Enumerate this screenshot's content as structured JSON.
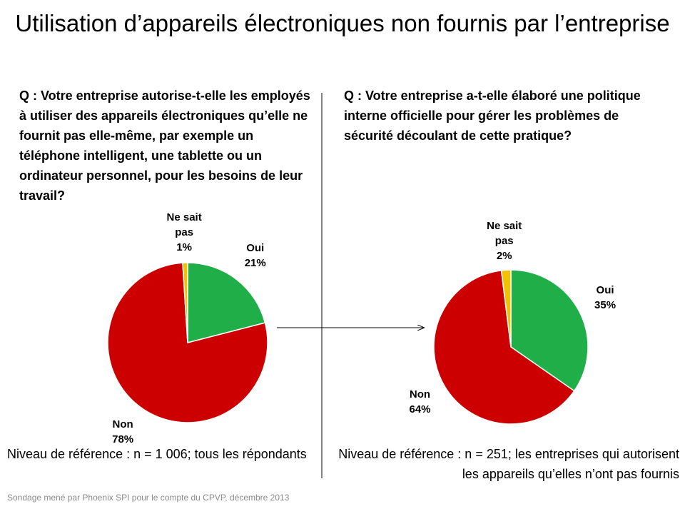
{
  "title": "Utilisation d’appareils électroniques non fournis par l’entreprise",
  "source": "Sondage mené par Phoenix SPI pour le compte du CPVP, décembre 2013",
  "chart_data": [
    {
      "type": "pie",
      "title": "Q : Votre entreprise autorise-t-elle les employés à utiliser des appareils électroniques qu’elle ne fournit pas elle-même, par exemple un téléphone intelligent, une tablette ou un ordinateur personnel, pour les besoins de leur travail?",
      "note": "Niveau de référence : n = 1 006; tous les répondants",
      "categories": [
        "Oui",
        "Non",
        "Ne sait pas"
      ],
      "values": [
        21,
        78,
        1
      ],
      "value_labels": [
        "21%",
        "78%",
        "1%"
      ],
      "colors": [
        "#1fae48",
        "#cc0000",
        "#f2c200"
      ]
    },
    {
      "type": "pie",
      "title": "Q : Votre entreprise a-t-elle élaboré une politique interne officielle pour gérer les problèmes de sécurité découlant de cette pratique?",
      "note": "Niveau de référence : n = 251; les entreprises qui autorisent les appareils qu’elles n’ont pas fournis",
      "categories": [
        "Oui",
        "Non",
        "Ne sait pas"
      ],
      "values": [
        35,
        64,
        2
      ],
      "value_labels": [
        "35%",
        "64%",
        "2%"
      ],
      "colors": [
        "#1fae48",
        "#cc0000",
        "#f2c200"
      ]
    }
  ]
}
